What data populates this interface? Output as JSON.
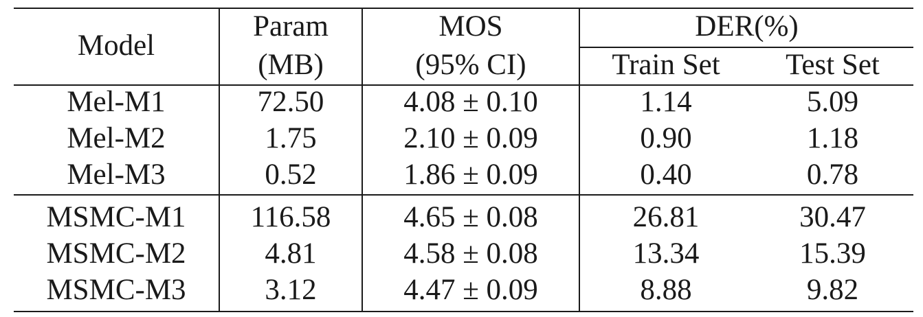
{
  "table": {
    "headers": {
      "model": "Model",
      "param_line1": "Param",
      "param_line2": "(MB)",
      "mos_line1": "MOS",
      "mos_line2": "(95% CI)",
      "der_group": "DER(%)",
      "der_train": "Train Set",
      "der_test": "Test Set"
    },
    "groups": [
      {
        "rows": [
          {
            "model": "Mel-M1",
            "param": "72.50",
            "mos": "4.08 ± 0.10",
            "der_train": "1.14",
            "der_test": "5.09"
          },
          {
            "model": "Mel-M2",
            "param": "1.75",
            "mos": "2.10 ± 0.09",
            "der_train": "0.90",
            "der_test": "1.18"
          },
          {
            "model": "Mel-M3",
            "param": "0.52",
            "mos": "1.86 ± 0.09",
            "der_train": "0.40",
            "der_test": "0.78"
          }
        ]
      },
      {
        "rows": [
          {
            "model": "MSMC-M1",
            "param": "116.58",
            "mos": "4.65 ± 0.08",
            "der_train": "26.81",
            "der_test": "30.47"
          },
          {
            "model": "MSMC-M2",
            "param": "4.81",
            "mos": "4.58 ± 0.08",
            "der_train": "13.34",
            "der_test": "15.39"
          },
          {
            "model": "MSMC-M3",
            "param": "3.12",
            "mos": "4.47 ± 0.09",
            "der_train": "8.88",
            "der_test": "9.82"
          }
        ]
      }
    ]
  }
}
